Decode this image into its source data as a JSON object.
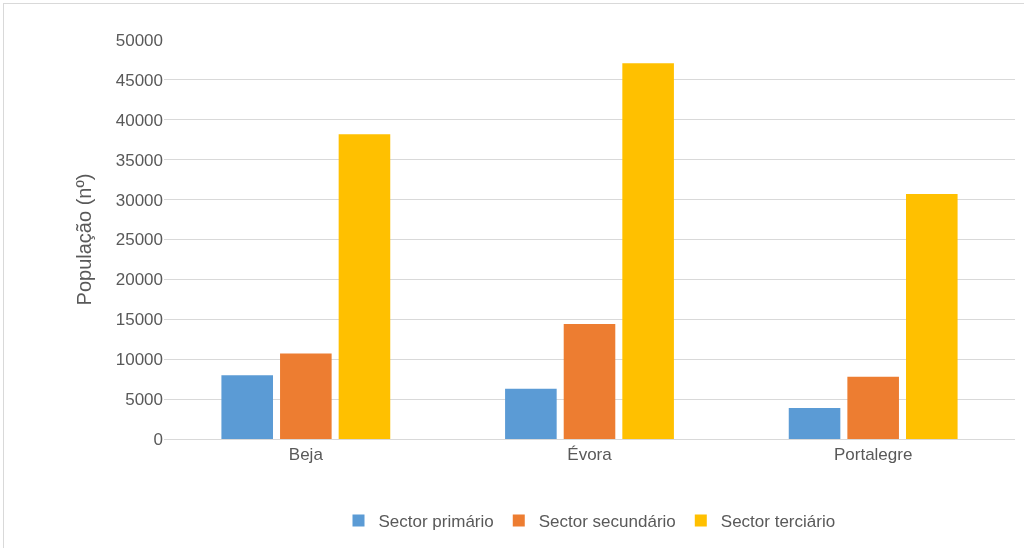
{
  "chart_data": {
    "type": "bar",
    "ylabel": "População (nº)",
    "categories": [
      "Beja",
      "Évora",
      "Portalegre"
    ],
    "series": [
      {
        "name": "Sector primário",
        "color": "#5b9bd5",
        "values": [
          8000,
          6300,
          3900
        ]
      },
      {
        "name": "Sector secundário",
        "color": "#ed7d31",
        "values": [
          10700,
          14400,
          7800
        ]
      },
      {
        "name": "Sector terciário",
        "color": "#ffc000",
        "values": [
          38200,
          47100,
          30700
        ]
      }
    ],
    "ylim": [
      0,
      50000
    ],
    "yticks": [
      0,
      5000,
      10000,
      15000,
      20000,
      25000,
      30000,
      35000,
      40000,
      45000,
      50000
    ],
    "grid": "y",
    "legend": "bottom"
  }
}
